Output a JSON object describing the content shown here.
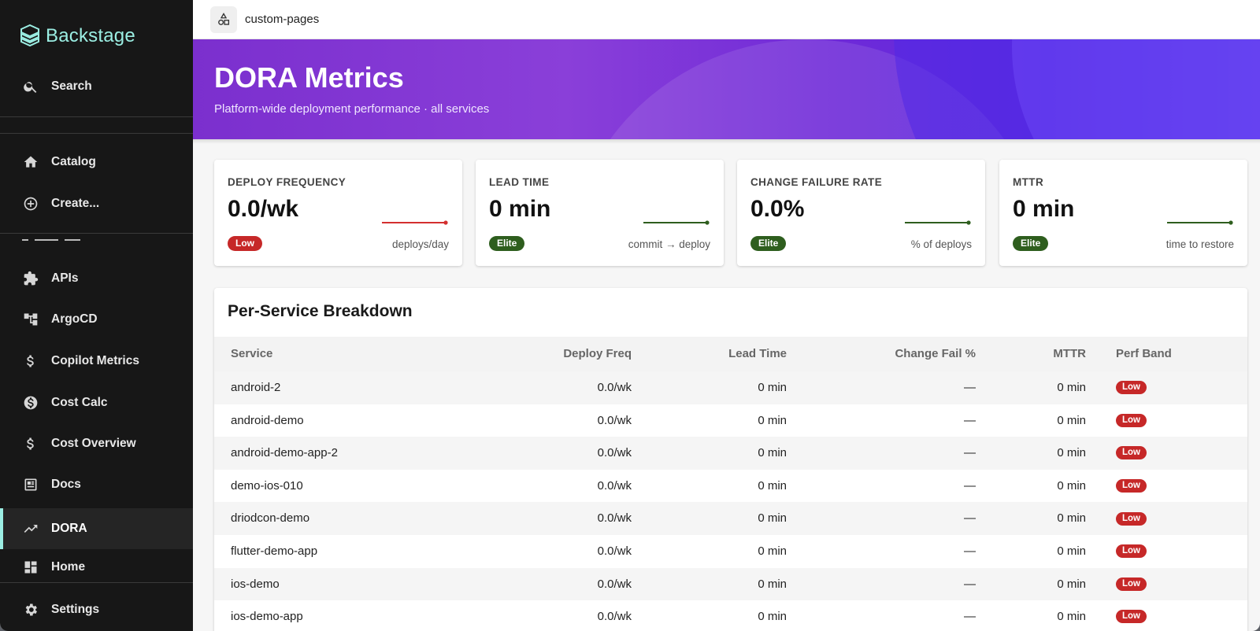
{
  "app": {
    "name": "Backstage",
    "accent": "#9beee3"
  },
  "sidebar": {
    "search_label": "Search",
    "items": [
      {
        "label": "Catalog",
        "icon": "home-icon"
      },
      {
        "label": "Create...",
        "icon": "add-circle-icon"
      },
      {
        "label": "APIs",
        "icon": "puzzle-icon"
      },
      {
        "label": "ArgoCD",
        "icon": "tree-icon"
      },
      {
        "label": "Copilot Metrics",
        "icon": "dollar-icon"
      },
      {
        "label": "Cost Calc",
        "icon": "dollar-circle-icon"
      },
      {
        "label": "Cost Overview",
        "icon": "dollar-icon"
      },
      {
        "label": "Docs",
        "icon": "docs-icon"
      },
      {
        "label": "DORA",
        "icon": "trending-up-icon",
        "active": true
      },
      {
        "label": "Home",
        "icon": "dashboard-icon"
      }
    ],
    "settings_label": "Settings"
  },
  "topbar": {
    "page_name": "custom-pages"
  },
  "banner": {
    "title": "DORA Metrics",
    "subtitle": "Platform-wide deployment performance · all services"
  },
  "metrics": [
    {
      "label": "DEPLOY FREQUENCY",
      "value": "0.0/wk",
      "band": "Low",
      "unit": "deploys/day",
      "color": "#d32f2f"
    },
    {
      "label": "LEAD TIME",
      "value": "0 min",
      "band": "Elite",
      "unit": "commit → deploy",
      "color": "#2e5e1e"
    },
    {
      "label": "CHANGE FAILURE RATE",
      "value": "0.0%",
      "band": "Elite",
      "unit": "% of deploys",
      "color": "#2e5e1e"
    },
    {
      "label": "MTTR",
      "value": "0 min",
      "band": "Elite",
      "unit": "time to restore",
      "color": "#2e5e1e"
    }
  ],
  "breakdown": {
    "title": "Per-Service Breakdown",
    "columns": [
      "Service",
      "Deploy Freq",
      "Lead Time",
      "Change Fail %",
      "MTTR",
      "Perf Band"
    ],
    "rows": [
      {
        "service": "android-2",
        "freq": "0.0/wk",
        "lead": "0 min",
        "cfr": "—",
        "mttr": "0 min",
        "band": "Low"
      },
      {
        "service": "android-demo",
        "freq": "0.0/wk",
        "lead": "0 min",
        "cfr": "—",
        "mttr": "0 min",
        "band": "Low"
      },
      {
        "service": "android-demo-app-2",
        "freq": "0.0/wk",
        "lead": "0 min",
        "cfr": "—",
        "mttr": "0 min",
        "band": "Low"
      },
      {
        "service": "demo-ios-010",
        "freq": "0.0/wk",
        "lead": "0 min",
        "cfr": "—",
        "mttr": "0 min",
        "band": "Low"
      },
      {
        "service": "driodcon-demo",
        "freq": "0.0/wk",
        "lead": "0 min",
        "cfr": "—",
        "mttr": "0 min",
        "band": "Low"
      },
      {
        "service": "flutter-demo-app",
        "freq": "0.0/wk",
        "lead": "0 min",
        "cfr": "—",
        "mttr": "0 min",
        "band": "Low"
      },
      {
        "service": "ios-demo",
        "freq": "0.0/wk",
        "lead": "0 min",
        "cfr": "—",
        "mttr": "0 min",
        "band": "Low"
      },
      {
        "service": "ios-demo-app",
        "freq": "0.0/wk",
        "lead": "0 min",
        "cfr": "—",
        "mttr": "0 min",
        "band": "Low"
      }
    ]
  }
}
